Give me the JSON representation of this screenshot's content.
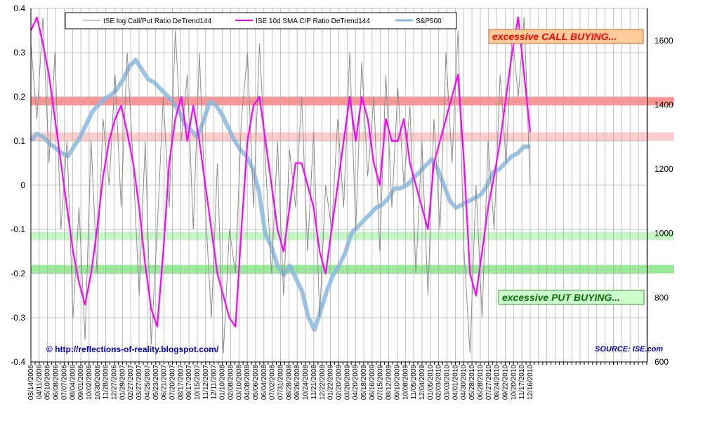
{
  "chart_data": {
    "type": "line",
    "title": "",
    "xlabel": "",
    "ylabel": "",
    "ylim": [
      -0.4,
      0.4
    ],
    "y2lim": [
      600,
      1700
    ],
    "y_ticks": [
      "0.4",
      "0.3",
      "0.2",
      "0.1",
      "0",
      "-0.1",
      "-0.2",
      "-0.3",
      "-0.4"
    ],
    "y2_ticks": [
      "1600",
      "1400",
      "1200",
      "1000",
      "800",
      "600"
    ],
    "x_ticks": [
      "03/14/2006",
      "04/11/2006",
      "05/10/2006",
      "06/08/2006",
      "07/07/2006",
      "08/04/2006",
      "09/01/2006",
      "10/02/2006",
      "10/30/2006",
      "11/28/2006",
      "12/27/2006",
      "01/29/2007",
      "02/27/2007",
      "03/27/2007",
      "04/25/2007",
      "05/23/2007",
      "06/21/2007",
      "07/20/2007",
      "08/17/2007",
      "09/17/2007",
      "10/15/2007",
      "11/12/2007",
      "12/11/2007",
      "01/10/2008",
      "02/08/2008",
      "03/10/2008",
      "04/08/2008",
      "05/06/2008",
      "06/04/2008",
      "07/02/2008",
      "07/31/2008",
      "08/28/2008",
      "09/26/2008",
      "10/24/2008",
      "11/21/2008",
      "12/22/2008",
      "01/22/2009",
      "02/20/2009",
      "03/20/2009",
      "04/20/2009",
      "05/18/2009",
      "06/16/2009",
      "07/15/2009",
      "08/12/2009",
      "09/10/2009",
      "10/08/2009",
      "11/05/2009",
      "12/04/2009",
      "01/05/2010",
      "02/03/2010",
      "03/03/2010",
      "04/01/2010",
      "04/30/2010",
      "05/28/2010",
      "06/28/2010",
      "07/27/2010",
      "08/24/2010",
      "09/22/2010",
      "10/20/2010",
      "11/17/2010",
      "12/16/2010"
    ],
    "legend": {
      "placement": "top",
      "entries": [
        "ISE log Call/Put Ratio DeTrend144",
        "ISE 10d SMA C/P Ratio DeTrend144",
        "S&P500"
      ]
    },
    "grid": true,
    "bands": [
      {
        "y": 0.19,
        "axis": "left",
        "color": "#ff6666",
        "opacity": 0.7
      },
      {
        "y": 0.11,
        "axis": "left",
        "color": "#ffaaaa",
        "opacity": 0.6
      },
      {
        "y": -0.115,
        "axis": "left",
        "color": "#99ee99",
        "opacity": 0.55
      },
      {
        "y": -0.19,
        "axis": "left",
        "color": "#55dd55",
        "opacity": 0.6
      }
    ],
    "sp500": {
      "name": "S&P500",
      "axis": "right",
      "color": "#8ab8de",
      "values": [
        1290,
        1310,
        1300,
        1280,
        1265,
        1250,
        1240,
        1270,
        1300,
        1340,
        1380,
        1400,
        1420,
        1430,
        1450,
        1480,
        1520,
        1540,
        1510,
        1480,
        1470,
        1450,
        1430,
        1410,
        1380,
        1340,
        1320,
        1300,
        1350,
        1410,
        1400,
        1370,
        1330,
        1290,
        1260,
        1240,
        1200,
        1130,
        1000,
        960,
        900,
        870,
        900,
        860,
        820,
        740,
        700,
        760,
        820,
        870,
        900,
        940,
        1000,
        1020,
        1040,
        1060,
        1080,
        1090,
        1110,
        1140,
        1140,
        1150,
        1170,
        1190,
        1210,
        1230,
        1200,
        1150,
        1100,
        1080,
        1090,
        1100,
        1110,
        1120,
        1150,
        1190,
        1200,
        1220,
        1240,
        1250,
        1270,
        1270
      ]
    },
    "sma": {
      "name": "ISE 10d SMA C/P Ratio DeTrend144",
      "axis": "left",
      "color": "#ff00ff",
      "values": [
        0.35,
        0.38,
        0.32,
        0.25,
        0.15,
        0.05,
        -0.05,
        -0.15,
        -0.22,
        -0.27,
        -0.2,
        -0.1,
        0.02,
        0.1,
        0.15,
        0.18,
        0.12,
        0.05,
        -0.05,
        -0.18,
        -0.28,
        -0.32,
        -0.15,
        0.05,
        0.15,
        0.2,
        0.1,
        0.18,
        0.1,
        0.0,
        -0.1,
        -0.2,
        -0.25,
        -0.3,
        -0.32,
        -0.1,
        0.1,
        0.18,
        0.2,
        0.1,
        0.0,
        -0.1,
        -0.15,
        -0.05,
        0.05,
        0.05,
        0.0,
        -0.05,
        -0.15,
        -0.2,
        -0.1,
        0.0,
        0.1,
        0.2,
        0.1,
        0.2,
        0.15,
        0.05,
        0.0,
        0.15,
        0.1,
        0.1,
        0.15,
        0.05,
        0.0,
        -0.05,
        -0.1,
        0.05,
        0.1,
        0.15,
        0.2,
        0.25,
        0.05,
        -0.2,
        -0.25,
        -0.15,
        -0.05,
        0.02,
        0.1,
        0.2,
        0.3,
        0.38,
        0.25,
        0.12
      ]
    },
    "detrend": {
      "name": "ISE log Call/Put Ratio DeTrend144",
      "axis": "left",
      "color": "#8c8c8c",
      "values": [
        0.32,
        0.15,
        0.38,
        0.05,
        0.3,
        -0.1,
        0.1,
        -0.3,
        -0.05,
        -0.35,
        0.1,
        -0.2,
        0.15,
        0.0,
        0.25,
        -0.05,
        0.3,
        0.05,
        -0.25,
        0.1,
        -0.36,
        -0.1,
        0.2,
        -0.05,
        0.35,
        0.1,
        0.25,
        -0.1,
        0.3,
        -0.05,
        -0.3,
        0.05,
        -0.38,
        -0.1,
        -0.2,
        0.15,
        0.3,
        -0.05,
        0.32,
        0.05,
        -0.2,
        0.1,
        -0.25,
        0.08,
        -0.05,
        0.2,
        -0.15,
        0.12,
        -0.3,
        0.0,
        -0.1,
        0.15,
        -0.05,
        0.3,
        -0.1,
        0.28,
        0.02,
        0.2,
        -0.15,
        0.25,
        -0.05,
        0.22,
        0.0,
        0.18,
        -0.2,
        0.1,
        -0.25,
        0.15,
        -0.1,
        0.3,
        0.05,
        0.35,
        -0.15,
        -0.38,
        0.0,
        -0.3,
        0.1,
        -0.1,
        0.25,
        0.05,
        0.35,
        0.2,
        0.38,
        0.0
      ]
    }
  },
  "annotations": {
    "call_buying": "excessive CALL BUYING...",
    "put_buying": "excessive PUT BUYING...",
    "credit": "© http://reflections-of-reality.blogspot.com/",
    "source": "SOURCE: ISE.com"
  },
  "colors": {
    "call_box_fill": "#ffcc99",
    "call_box_border": "#cc6633",
    "put_box_fill": "#ccffcc",
    "put_box_border": "#339933"
  }
}
